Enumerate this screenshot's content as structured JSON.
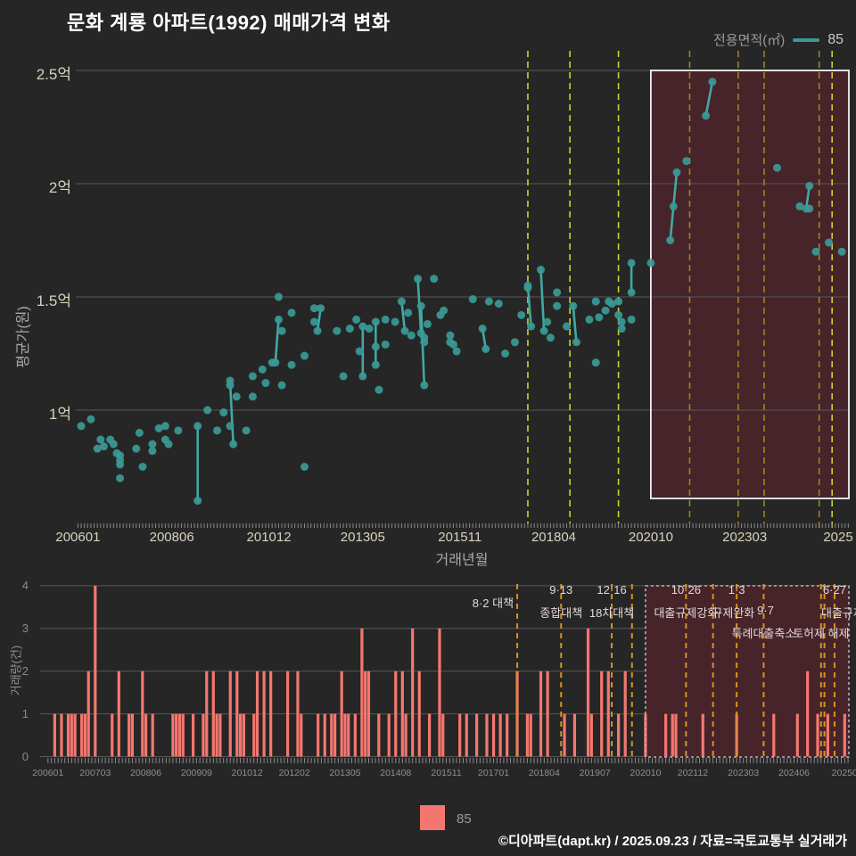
{
  "title": "문화 계룡 아파트(1992) 매매가격 변화",
  "legend": {
    "label": "전용면적(㎡)",
    "value": "85"
  },
  "series_legend": {
    "value": "85"
  },
  "footer": "©디아파트(dapt.kr) / 2025.09.23 / 자료=국토교통부 실거래가",
  "colors": {
    "background": "#262626",
    "grid": "#585858",
    "point_teal": "#3a9a96",
    "segment_teal": "#43a8a3",
    "bar_salmon": "#f4776f",
    "policy_bright_yellow": "#ccd32f",
    "policy_dim_olive": "#9b861e",
    "policy_orange": "#d8921e",
    "highlight_fill": "#46242a",
    "highlight_border": "#f2f2f2",
    "region_border": "#b5b5b5",
    "tick_label_cream": "#d8d3bd",
    "annotation_text": "#e2d8d8"
  },
  "price_chart": {
    "y_title": "평균가(원)",
    "x_title": "거래년월",
    "y_ticks": [
      {
        "label": "2.5억",
        "v": 2.5
      },
      {
        "label": "2억",
        "v": 2.0
      },
      {
        "label": "1.5억",
        "v": 1.5
      },
      {
        "label": "1억",
        "v": 1.0
      }
    ],
    "x_ticks": [
      {
        "label": "200601",
        "ym": 200601
      },
      {
        "label": "200806",
        "ym": 200806
      },
      {
        "label": "201012",
        "ym": 201012
      },
      {
        "label": "201305",
        "ym": 201305
      },
      {
        "label": "201511",
        "ym": 201511
      },
      {
        "label": "201804",
        "ym": 201804
      },
      {
        "label": "202010",
        "ym": 202010
      },
      {
        "label": "202303",
        "ym": 202303
      },
      {
        "label": "2025",
        "ym": 202509
      }
    ]
  },
  "volume_chart": {
    "y_title": "거래량(건)",
    "y_ticks": [
      {
        "label": "4",
        "v": 4
      },
      {
        "label": "3",
        "v": 3
      },
      {
        "label": "2",
        "v": 2
      },
      {
        "label": "1",
        "v": 1
      },
      {
        "label": "0",
        "v": 0
      }
    ],
    "x_ticks": [
      {
        "label": "200601",
        "ym": 200601
      },
      {
        "label": "200703",
        "ym": 200703
      },
      {
        "label": "200806",
        "ym": 200806
      },
      {
        "label": "200909",
        "ym": 200909
      },
      {
        "label": "201012",
        "ym": 201012
      },
      {
        "label": "201202",
        "ym": 201202
      },
      {
        "label": "201305",
        "ym": 201305
      },
      {
        "label": "201408",
        "ym": 201408
      },
      {
        "label": "201511",
        "ym": 201511
      },
      {
        "label": "201701",
        "ym": 201701
      },
      {
        "label": "201804",
        "ym": 201804
      },
      {
        "label": "201907",
        "ym": 201907
      },
      {
        "label": "202010",
        "ym": 202010
      },
      {
        "label": "202112",
        "ym": 202112
      },
      {
        "label": "202303",
        "ym": 202303
      },
      {
        "label": "202406",
        "ym": 202406
      },
      {
        "label": "20250",
        "ym": 202509
      }
    ],
    "annotations": [
      {
        "text": "8·2 대책",
        "ym": 201708,
        "row": 1.5,
        "anchor": "right"
      },
      {
        "text": "9·13",
        "ym": 201809,
        "row": 1,
        "anchor": "center"
      },
      {
        "text": "종합대책",
        "ym": 201809,
        "row": 2,
        "anchor": "center"
      },
      {
        "text": "12·16",
        "ym": 201912,
        "row": 1,
        "anchor": "center"
      },
      {
        "text": "18차대책",
        "ym": 201912,
        "row": 2,
        "anchor": "center"
      },
      {
        "text": "10·26",
        "ym": 202110,
        "row": 1,
        "anchor": "center"
      },
      {
        "text": "대출규제강화",
        "ym": 202110,
        "row": 2,
        "anchor": "center"
      },
      {
        "text": "1·3",
        "ym": 202301,
        "row": 1,
        "anchor": "center"
      },
      {
        "text": "규제완화",
        "ym": 202212,
        "row": 2,
        "anchor": "center"
      },
      {
        "text": "9·7",
        "ym": 202306,
        "row": 2,
        "anchor": "left"
      },
      {
        "text": "특례대출축소",
        "ym": 202309,
        "row": 3,
        "anchor": "center"
      },
      {
        "text": "토허제 해제",
        "ym": 202502,
        "row": 3,
        "anchor": "center"
      },
      {
        "text": "6·27",
        "ym": 202506,
        "row": 1,
        "anchor": "center"
      },
      {
        "text": "대출규제",
        "ym": 202501,
        "row": 2,
        "anchor": "left"
      }
    ]
  },
  "chart_data": [
    {
      "type": "scatter",
      "title": "문화 계룡 아파트(1992) 매매가격 변화",
      "xlabel": "거래년월",
      "ylabel": "평균가(원)",
      "unit": "억원",
      "ylim": [
        0.5,
        2.55
      ],
      "xlim": [
        200601,
        202511
      ],
      "legend_position": "top-right",
      "grid": true,
      "highlight_from": 202010,
      "series_name": "85",
      "points": [
        [
          200602,
          0.93
        ],
        [
          200605,
          0.96
        ],
        [
          200607,
          0.83
        ],
        [
          200608,
          0.87
        ],
        [
          200609,
          0.84
        ],
        [
          200611,
          0.87
        ],
        [
          200612,
          0.85
        ],
        [
          200701,
          0.81
        ],
        [
          200702,
          0.8
        ],
        [
          200702,
          0.78
        ],
        [
          200702,
          0.76
        ],
        [
          200702,
          0.7
        ],
        [
          200707,
          0.83
        ],
        [
          200708,
          0.9
        ],
        [
          200709,
          0.75
        ],
        [
          200712,
          0.85
        ],
        [
          200712,
          0.82
        ],
        [
          200802,
          0.92
        ],
        [
          200804,
          0.93
        ],
        [
          200804,
          0.87
        ],
        [
          200805,
          0.85
        ],
        [
          200808,
          0.91
        ],
        [
          200902,
          0.93
        ],
        [
          200902,
          0.6
        ],
        [
          200905,
          1.0
        ],
        [
          200908,
          0.91
        ],
        [
          200910,
          0.99
        ],
        [
          200912,
          0.93
        ],
        [
          200912,
          1.13
        ],
        [
          200912,
          1.11
        ],
        [
          201001,
          0.85
        ],
        [
          201002,
          1.06
        ],
        [
          201005,
          0.91
        ],
        [
          201007,
          1.06
        ],
        [
          201007,
          1.15
        ],
        [
          201010,
          1.18
        ],
        [
          201011,
          1.12
        ],
        [
          201101,
          1.21
        ],
        [
          201102,
          1.21
        ],
        [
          201103,
          1.5
        ],
        [
          201103,
          1.4
        ],
        [
          201104,
          1.35
        ],
        [
          201104,
          1.11
        ],
        [
          201107,
          1.43
        ],
        [
          201107,
          1.2
        ],
        [
          201111,
          1.24
        ],
        [
          201111,
          0.75
        ],
        [
          201202,
          1.45
        ],
        [
          201202,
          1.39
        ],
        [
          201203,
          1.35
        ],
        [
          201204,
          1.45
        ],
        [
          201209,
          1.35
        ],
        [
          201211,
          1.15
        ],
        [
          201301,
          1.36
        ],
        [
          201303,
          1.4
        ],
        [
          201304,
          1.26
        ],
        [
          201305,
          1.15
        ],
        [
          201305,
          1.37
        ],
        [
          201307,
          1.36
        ],
        [
          201309,
          1.39
        ],
        [
          201309,
          1.28
        ],
        [
          201309,
          1.2
        ],
        [
          201310,
          1.09
        ],
        [
          201312,
          1.29
        ],
        [
          201312,
          1.4
        ],
        [
          201403,
          1.39
        ],
        [
          201405,
          1.48
        ],
        [
          201406,
          1.35
        ],
        [
          201407,
          1.43
        ],
        [
          201408,
          1.33
        ],
        [
          201410,
          1.58
        ],
        [
          201411,
          1.46
        ],
        [
          201411,
          1.34
        ],
        [
          201412,
          1.32
        ],
        [
          201412,
          1.3
        ],
        [
          201412,
          1.11
        ],
        [
          201501,
          1.38
        ],
        [
          201503,
          1.58
        ],
        [
          201505,
          1.42
        ],
        [
          201506,
          1.44
        ],
        [
          201508,
          1.33
        ],
        [
          201508,
          1.3
        ],
        [
          201509,
          1.29
        ],
        [
          201510,
          1.26
        ],
        [
          201603,
          1.49
        ],
        [
          201606,
          1.36
        ],
        [
          201607,
          1.27
        ],
        [
          201608,
          1.48
        ],
        [
          201611,
          1.47
        ],
        [
          201701,
          1.25
        ],
        [
          201704,
          1.3
        ],
        [
          201706,
          1.42
        ],
        [
          201708,
          1.55
        ],
        [
          201708,
          1.54
        ],
        [
          201709,
          1.37
        ],
        [
          201712,
          1.62
        ],
        [
          201801,
          1.35
        ],
        [
          201802,
          1.39
        ],
        [
          201803,
          1.32
        ],
        [
          201805,
          1.52
        ],
        [
          201805,
          1.46
        ],
        [
          201808,
          1.37
        ],
        [
          201810,
          1.46
        ],
        [
          201811,
          1.3
        ],
        [
          201903,
          1.4
        ],
        [
          201905,
          1.21
        ],
        [
          201905,
          1.48
        ],
        [
          201906,
          1.41
        ],
        [
          201908,
          1.44
        ],
        [
          201909,
          1.48
        ],
        [
          201910,
          1.47
        ],
        [
          201912,
          1.48
        ],
        [
          201912,
          1.42
        ],
        [
          202001,
          1.39
        ],
        [
          202001,
          1.36
        ],
        [
          202004,
          1.4
        ],
        [
          202004,
          1.65
        ],
        [
          202004,
          1.52
        ],
        [
          202010,
          1.65
        ],
        [
          202104,
          1.75
        ],
        [
          202105,
          1.9
        ],
        [
          202106,
          2.05
        ],
        [
          202109,
          2.1
        ],
        [
          202203,
          2.3
        ],
        [
          202205,
          2.45
        ],
        [
          202401,
          2.07
        ],
        [
          202408,
          1.9
        ],
        [
          202410,
          1.89
        ],
        [
          202411,
          1.89
        ],
        [
          202411,
          1.99
        ],
        [
          202501,
          1.7
        ],
        [
          202505,
          1.74
        ],
        [
          202509,
          1.7
        ]
      ],
      "segments": [
        [
          200902,
          0.93,
          200902,
          0.6
        ],
        [
          200912,
          1.13,
          201001,
          0.85
        ],
        [
          201103,
          1.4,
          201102,
          1.21
        ],
        [
          201204,
          1.45,
          201203,
          1.35
        ],
        [
          201305,
          1.37,
          201305,
          1.15
        ],
        [
          201309,
          1.39,
          201309,
          1.2
        ],
        [
          201405,
          1.48,
          201406,
          1.35
        ],
        [
          201410,
          1.58,
          201411,
          1.34
        ],
        [
          201411,
          1.46,
          201412,
          1.11
        ],
        [
          201606,
          1.36,
          201607,
          1.27
        ],
        [
          201708,
          1.55,
          201709,
          1.37
        ],
        [
          201712,
          1.62,
          201801,
          1.35
        ],
        [
          201810,
          1.46,
          201811,
          1.3
        ],
        [
          202004,
          1.65,
          202004,
          1.52
        ],
        [
          202104,
          1.75,
          202106,
          2.05
        ],
        [
          202203,
          2.3,
          202205,
          2.45
        ],
        [
          202410,
          1.89,
          202411,
          1.99
        ]
      ],
      "policy_lines": [
        {
          "ym": 201708,
          "style": "bright"
        },
        {
          "ym": 201809,
          "style": "bright"
        },
        {
          "ym": 201912,
          "style": "bright"
        },
        {
          "ym": 202110,
          "style": "dim"
        },
        {
          "ym": 202301,
          "style": "dim"
        },
        {
          "ym": 202309,
          "style": "dim"
        },
        {
          "ym": 202502,
          "style": "dim",
          "ext": true
        },
        {
          "ym": 202506,
          "style": "bright",
          "ext": true
        }
      ]
    },
    {
      "type": "bar",
      "ylabel": "거래량(건)",
      "ylim": [
        0,
        4
      ],
      "grid": true,
      "highlight_from": 202010,
      "series_name": "85",
      "bars": [
        [
          200603,
          1
        ],
        [
          200605,
          1
        ],
        [
          200607,
          1
        ],
        [
          200608,
          1
        ],
        [
          200609,
          1
        ],
        [
          200611,
          1
        ],
        [
          200612,
          1
        ],
        [
          200701,
          2
        ],
        [
          200703,
          4
        ],
        [
          200708,
          1
        ],
        [
          200710,
          2
        ],
        [
          200801,
          1
        ],
        [
          200802,
          1
        ],
        [
          200805,
          2
        ],
        [
          200806,
          1
        ],
        [
          200808,
          1
        ],
        [
          200902,
          1
        ],
        [
          200903,
          1
        ],
        [
          200904,
          1
        ],
        [
          200905,
          1
        ],
        [
          200908,
          1
        ],
        [
          200911,
          1
        ],
        [
          200912,
          2
        ],
        [
          201002,
          2
        ],
        [
          201003,
          1
        ],
        [
          201004,
          1
        ],
        [
          201007,
          2
        ],
        [
          201009,
          2
        ],
        [
          201010,
          1
        ],
        [
          201011,
          1
        ],
        [
          201102,
          1
        ],
        [
          201103,
          2
        ],
        [
          201105,
          2
        ],
        [
          201107,
          2
        ],
        [
          201112,
          2
        ],
        [
          201203,
          2
        ],
        [
          201204,
          1
        ],
        [
          201209,
          1
        ],
        [
          201211,
          1
        ],
        [
          201301,
          1
        ],
        [
          201302,
          1
        ],
        [
          201304,
          2
        ],
        [
          201305,
          1
        ],
        [
          201306,
          1
        ],
        [
          201308,
          1
        ],
        [
          201310,
          3
        ],
        [
          201311,
          2
        ],
        [
          201312,
          2
        ],
        [
          201403,
          1
        ],
        [
          201406,
          1
        ],
        [
          201408,
          2
        ],
        [
          201410,
          2
        ],
        [
          201411,
          1
        ],
        [
          201501,
          3
        ],
        [
          201503,
          2
        ],
        [
          201506,
          1
        ],
        [
          201509,
          3
        ],
        [
          201510,
          1
        ],
        [
          201603,
          1
        ],
        [
          201605,
          1
        ],
        [
          201608,
          1
        ],
        [
          201611,
          1
        ],
        [
          201701,
          1
        ],
        [
          201703,
          1
        ],
        [
          201705,
          1
        ],
        [
          201708,
          2
        ],
        [
          201711,
          1
        ],
        [
          201712,
          1
        ],
        [
          201803,
          2
        ],
        [
          201805,
          2
        ],
        [
          201810,
          1
        ],
        [
          201901,
          1
        ],
        [
          201905,
          3
        ],
        [
          201906,
          1
        ],
        [
          201909,
          2
        ],
        [
          201911,
          2
        ],
        [
          202002,
          1
        ],
        [
          202004,
          2
        ],
        [
          202010,
          1
        ],
        [
          202104,
          1
        ],
        [
          202106,
          1
        ],
        [
          202107,
          1
        ],
        [
          202203,
          1
        ],
        [
          202301,
          1
        ],
        [
          202312,
          1
        ],
        [
          202407,
          1
        ],
        [
          202410,
          2
        ],
        [
          202501,
          1
        ],
        [
          202504,
          1
        ],
        [
          202509,
          1
        ]
      ],
      "policy_lines": [
        {
          "ym": 201708
        },
        {
          "ym": 201809
        },
        {
          "ym": 201912
        },
        {
          "ym": 202006
        },
        {
          "ym": 202110
        },
        {
          "ym": 202206
        },
        {
          "ym": 202301
        },
        {
          "ym": 202309
        },
        {
          "ym": 202502
        },
        {
          "ym": 202503
        },
        {
          "ym": 202506
        }
      ]
    }
  ]
}
